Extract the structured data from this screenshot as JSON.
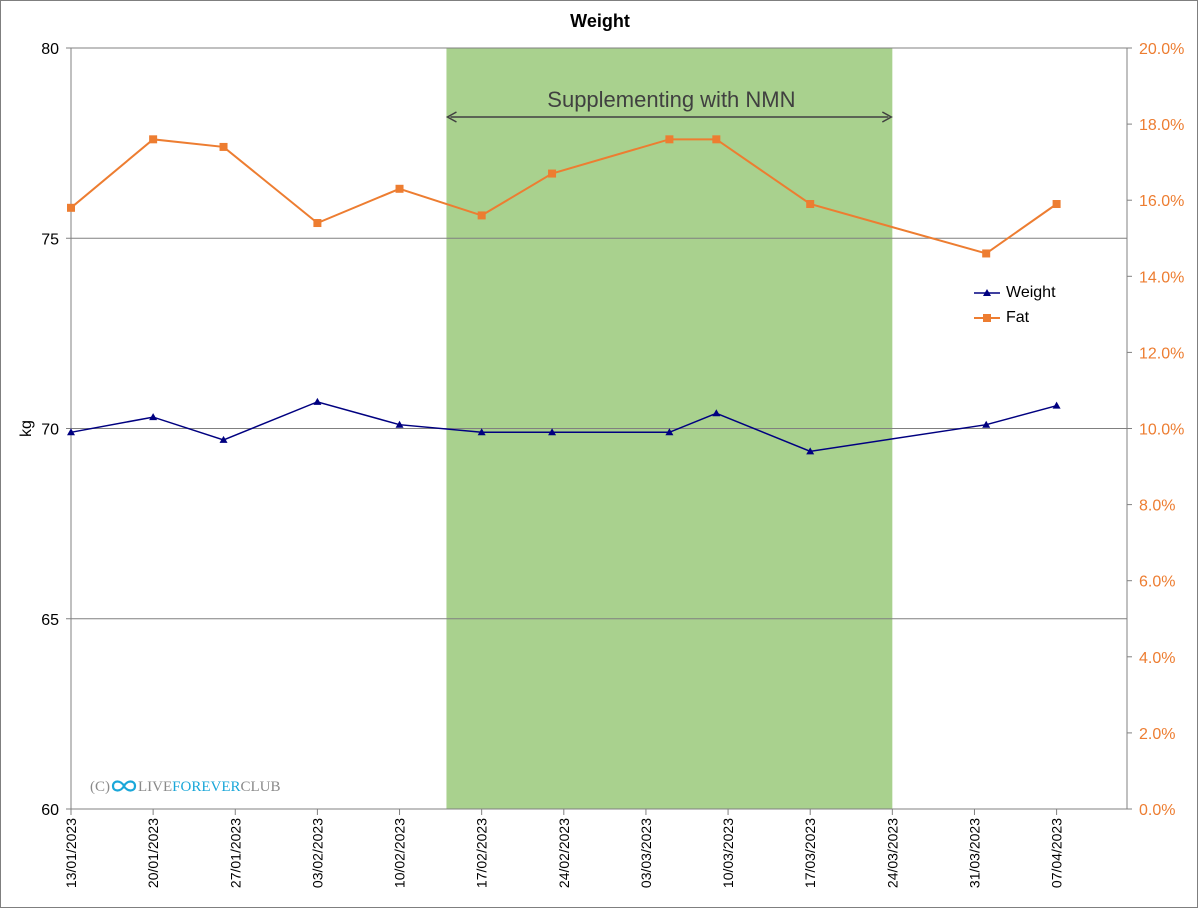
{
  "chart_data": {
    "type": "line",
    "title": "Weight",
    "ylabel": "kg",
    "ylim": [
      60,
      80
    ],
    "y2lim": [
      0,
      0.2
    ],
    "yticks": [
      "60",
      "65",
      "70",
      "75",
      "80"
    ],
    "y2ticks": [
      "0.0%",
      "2.0%",
      "4.0%",
      "6.0%",
      "8.0%",
      "10.0%",
      "12.0%",
      "14.0%",
      "16.0%",
      "18.0%",
      "20.0%"
    ],
    "xticks": [
      "13/01/2023",
      "20/01/2023",
      "27/01/2023",
      "03/02/2023",
      "10/02/2023",
      "17/02/2023",
      "24/02/2023",
      "03/03/2023",
      "10/03/2023",
      "17/03/2023",
      "24/03/2023",
      "31/03/2023",
      "07/04/2023"
    ],
    "xlim": [
      "13/01/2023",
      "13/04/2023"
    ],
    "x": [
      "13/01/2023",
      "20/01/2023",
      "26/01/2023",
      "03/02/2023",
      "10/02/2023",
      "17/02/2023",
      "23/02/2023",
      "05/03/2023",
      "09/03/2023",
      "17/03/2023",
      "01/04/2023",
      "07/04/2023"
    ],
    "grid": "horizontal",
    "legend_position": "right",
    "series": [
      {
        "name": "Weight",
        "axis": "left",
        "color": "#000080",
        "marker": "triangle",
        "values": [
          69.9,
          70.3,
          69.7,
          70.7,
          70.1,
          69.9,
          69.9,
          69.9,
          70.4,
          69.4,
          70.1,
          70.6
        ]
      },
      {
        "name": "Fat",
        "axis": "right",
        "color": "#ed7d31",
        "marker": "square",
        "values": [
          0.158,
          0.176,
          0.174,
          0.154,
          0.163,
          0.156,
          0.167,
          0.176,
          0.176,
          0.159,
          0.146,
          0.159
        ]
      }
    ],
    "annotation": {
      "text": "Supplementing with NMN",
      "start": "14/02/2023",
      "end": "24/03/2023",
      "color": "#a9d18e"
    }
  },
  "watermark": {
    "prefix": "(C)",
    "part1": "LIVE",
    "part2": "FOREVER",
    "part3": "CLUB"
  },
  "colors": {
    "left_axis_text": "#000000",
    "right_axis_text": "#ed7d31",
    "gridline": "#808080"
  }
}
